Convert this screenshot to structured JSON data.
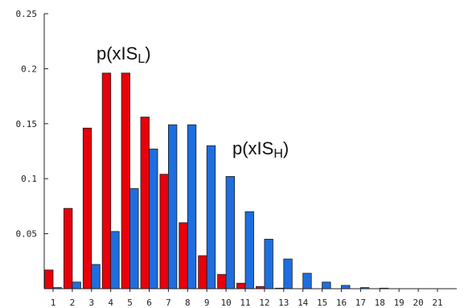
{
  "chart_data": {
    "type": "bar",
    "categories": [
      "1",
      "2",
      "3",
      "4",
      "5",
      "6",
      "7",
      "8",
      "9",
      "10",
      "11",
      "12",
      "13",
      "14",
      "15",
      "16",
      "17",
      "18",
      "19",
      "20",
      "21"
    ],
    "series": [
      {
        "name": "p(x|S_L)",
        "label_main": "p(xIS",
        "label_sub": "L",
        "label_close": ")",
        "color": "#e8000b",
        "values": [
          0.017,
          0.073,
          0.146,
          0.196,
          0.196,
          0.156,
          0.104,
          0.06,
          0.03,
          0.013,
          0.005,
          0.002,
          0.0005,
          0.0002,
          0.0001,
          0.0,
          0.0,
          0.0,
          0.0,
          0.0,
          0.0
        ]
      },
      {
        "name": "p(x|S_H)",
        "label_main": "p(xIS",
        "label_sub": "H",
        "label_close": ")",
        "color": "#1e6ee0",
        "values": [
          0.001,
          0.006,
          0.022,
          0.052,
          0.091,
          0.127,
          0.149,
          0.149,
          0.13,
          0.102,
          0.07,
          0.045,
          0.027,
          0.014,
          0.006,
          0.003,
          0.001,
          0.0005,
          0.0002,
          0.0001,
          0.0
        ]
      }
    ],
    "yticks": [
      "0.05",
      "0.1",
      "0.15",
      "0.2",
      "0.25"
    ],
    "ylim": [
      0,
      0.25
    ],
    "grid": false,
    "legend": "none",
    "title": "",
    "xlabel": "",
    "ylabel": ""
  }
}
